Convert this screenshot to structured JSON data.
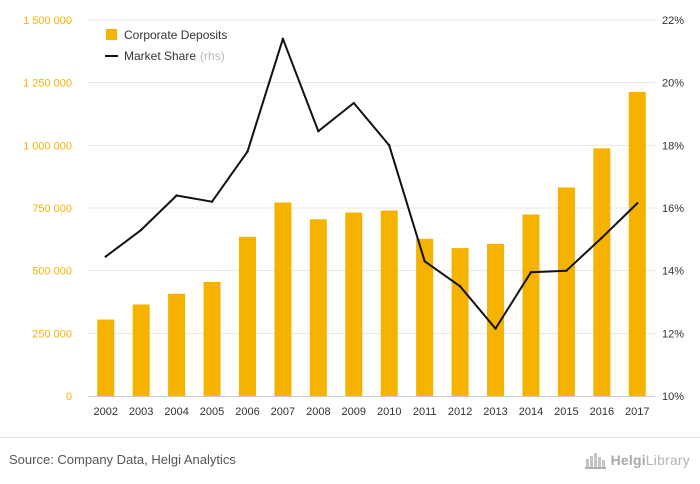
{
  "chart_data": {
    "type": "bar",
    "categories": [
      "2002",
      "2003",
      "2004",
      "2005",
      "2006",
      "2007",
      "2008",
      "2009",
      "2010",
      "2011",
      "2012",
      "2013",
      "2014",
      "2015",
      "2016",
      "2017"
    ],
    "series": [
      {
        "name": "Corporate Deposits",
        "type": "bar",
        "axis": "left",
        "color": "#F5B300",
        "values": [
          305000,
          365000,
          408000,
          455000,
          635000,
          772000,
          705000,
          732000,
          740000,
          627000,
          590000,
          607000,
          724000,
          832000,
          988000,
          1213000
        ]
      },
      {
        "name": "Market Share",
        "name_suffix": "(rhs)",
        "type": "line",
        "axis": "right",
        "color": "#111111",
        "values": [
          14.45,
          15.3,
          16.4,
          16.2,
          17.8,
          21.4,
          18.45,
          19.35,
          18.0,
          14.3,
          13.5,
          12.15,
          13.95,
          14.0,
          15.05,
          16.15
        ]
      }
    ],
    "y_left": {
      "ylim": [
        0,
        1500000
      ],
      "ticks": [
        "0",
        "250 000",
        "500 000",
        "750 000",
        "1 000 000",
        "1 250 000",
        "1 500 000"
      ],
      "color": "#F5B300"
    },
    "y_right": {
      "ylim": [
        10,
        22
      ],
      "ticks": [
        "10%",
        "12%",
        "14%",
        "16%",
        "18%",
        "20%",
        "22%"
      ]
    },
    "legend": {
      "position": "top-left"
    },
    "grid": true
  },
  "footer": {
    "source": "Source: Company Data, Helgi Analytics",
    "logo_part1": "Helgi",
    "logo_part2": "Library"
  },
  "icons": {
    "logo": "helgi-library-logo-icon"
  }
}
